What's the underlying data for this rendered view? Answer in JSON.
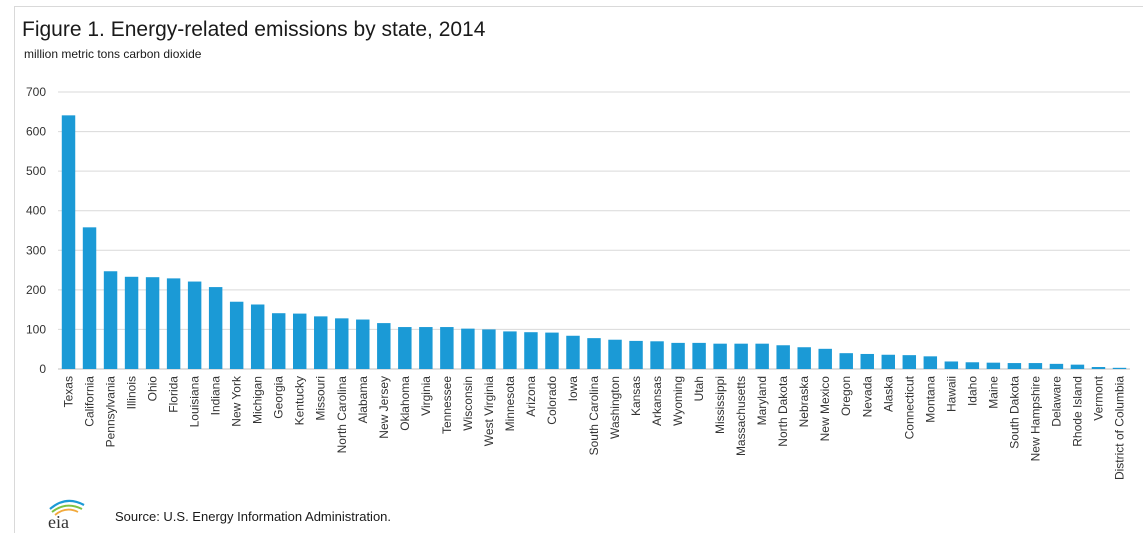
{
  "header": {
    "title": "Figure 1. Energy-related emissions by state, 2014",
    "subtitle": "million metric tons carbon dioxide"
  },
  "footer": {
    "logo_text": "eia",
    "source": "Source:  U.S. Energy Information Administration."
  },
  "colors": {
    "bar": "#1b9ad6",
    "grid": "#d9d9d9",
    "axis": "#bfbfbf"
  },
  "chart_data": {
    "type": "bar",
    "title": "Figure 1. Energy-related emissions by state, 2014",
    "ylabel": "million metric tons carbon dioxide",
    "ylim": [
      0,
      700
    ],
    "yticks": [
      0,
      100,
      200,
      300,
      400,
      500,
      600,
      700
    ],
    "grid": true,
    "categories": [
      "Texas",
      "California",
      "Pennsylvania",
      "Illinois",
      "Ohio",
      "Florida",
      "Louisiana",
      "Indiana",
      "New York",
      "Michigan",
      "Georgia",
      "Kentucky",
      "Missouri",
      "North Carolina",
      "Alabama",
      "New Jersey",
      "Oklahoma",
      "Virginia",
      "Tennessee",
      "Wisconsin",
      "West Virginia",
      "Minnesota",
      "Arizona",
      "Colorado",
      "Iowa",
      "South Carolina",
      "Washington",
      "Kansas",
      "Arkansas",
      "Wyoming",
      "Utah",
      "Mississippi",
      "Massachusetts",
      "Maryland",
      "North Dakota",
      "Nebraska",
      "New Mexico",
      "Oregon",
      "Nevada",
      "Alaska",
      "Connecticut",
      "Montana",
      "Hawaii",
      "Idaho",
      "Maine",
      "South Dakota",
      "New Hampshire",
      "Delaware",
      "Rhode Island",
      "Vermont",
      "District of Columbia"
    ],
    "values": [
      641,
      358,
      247,
      233,
      232,
      229,
      221,
      207,
      170,
      163,
      141,
      140,
      133,
      128,
      125,
      116,
      106,
      106,
      106,
      102,
      100,
      95,
      93,
      92,
      84,
      78,
      74,
      71,
      70,
      66,
      66,
      64,
      64,
      64,
      60,
      55,
      51,
      40,
      38,
      36,
      35,
      32,
      19,
      17,
      16,
      15,
      15,
      13,
      11,
      5,
      3
    ]
  }
}
